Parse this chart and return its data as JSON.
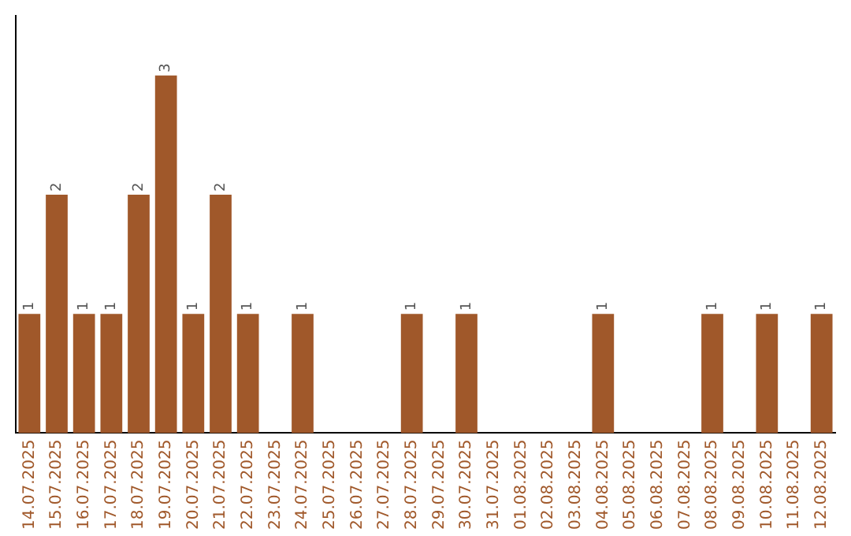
{
  "chart_data": {
    "type": "bar",
    "categories": [
      "14.07.2025",
      "15.07.2025",
      "16.07.2025",
      "17.07.2025",
      "18.07.2025",
      "19.07.2025",
      "20.07.2025",
      "21.07.2025",
      "22.07.2025",
      "23.07.2025",
      "24.07.2025",
      "25.07.2025",
      "26.07.2025",
      "27.07.2025",
      "28.07.2025",
      "29.07.2025",
      "30.07.2025",
      "31.07.2025",
      "01.08.2025",
      "02.08.2025",
      "03.08.2025",
      "04.08.2025",
      "05.08.2025",
      "06.08.2025",
      "07.08.2025",
      "08.08.2025",
      "09.08.2025",
      "10.08.2025",
      "11.08.2025",
      "12.08.2025"
    ],
    "values": [
      1,
      2,
      1,
      1,
      2,
      3,
      1,
      2,
      1,
      0,
      1,
      0,
      0,
      0,
      1,
      0,
      1,
      0,
      0,
      0,
      0,
      1,
      0,
      0,
      0,
      1,
      0,
      1,
      0,
      1
    ],
    "value_labels": [
      "1",
      "2",
      "1",
      "1",
      "2",
      "3",
      "1",
      "2",
      "1",
      null,
      "1",
      null,
      null,
      null,
      "1",
      null,
      "1",
      null,
      null,
      null,
      null,
      "1",
      null,
      null,
      null,
      "1",
      null,
      "1",
      null,
      "1"
    ],
    "color": "#a0582a",
    "tick_labels": "x",
    "grid": false,
    "legend": false
  }
}
